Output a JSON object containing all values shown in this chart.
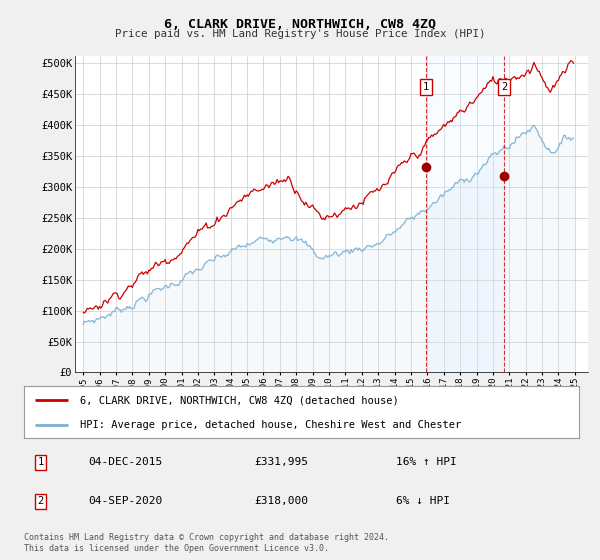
{
  "title": "6, CLARK DRIVE, NORTHWICH, CW8 4ZQ",
  "subtitle": "Price paid vs. HM Land Registry's House Price Index (HPI)",
  "ylabel_ticks": [
    "£0",
    "£50K",
    "£100K",
    "£150K",
    "£200K",
    "£250K",
    "£300K",
    "£350K",
    "£400K",
    "£450K",
    "£500K"
  ],
  "ytick_values": [
    0,
    50000,
    100000,
    150000,
    200000,
    250000,
    300000,
    350000,
    400000,
    450000,
    500000
  ],
  "ylim": [
    0,
    512000
  ],
  "xlim_start": 1994.5,
  "xlim_end": 2025.8,
  "background_color": "#f0f0f0",
  "plot_bg_color": "#ffffff",
  "grid_color": "#cccccc",
  "hpi_color": "#7bafd4",
  "hpi_fill_color": "#c8dff0",
  "price_color": "#cc0000",
  "vline_color": "#cc0000",
  "vline_fill_color": "#ddeeff",
  "legend_label_red": "6, CLARK DRIVE, NORTHWICH, CW8 4ZQ (detached house)",
  "legend_label_blue": "HPI: Average price, detached house, Cheshire West and Chester",
  "transaction1_date": "04-DEC-2015",
  "transaction1_price": "£331,995",
  "transaction1_hpi": "16% ↑ HPI",
  "transaction1_year": 2015.92,
  "transaction1_value": 331995,
  "transaction2_date": "04-SEP-2020",
  "transaction2_price": "£318,000",
  "transaction2_hpi": "6% ↓ HPI",
  "transaction2_year": 2020.67,
  "transaction2_value": 318000,
  "footer": "Contains HM Land Registry data © Crown copyright and database right 2024.\nThis data is licensed under the Open Government Licence v3.0."
}
